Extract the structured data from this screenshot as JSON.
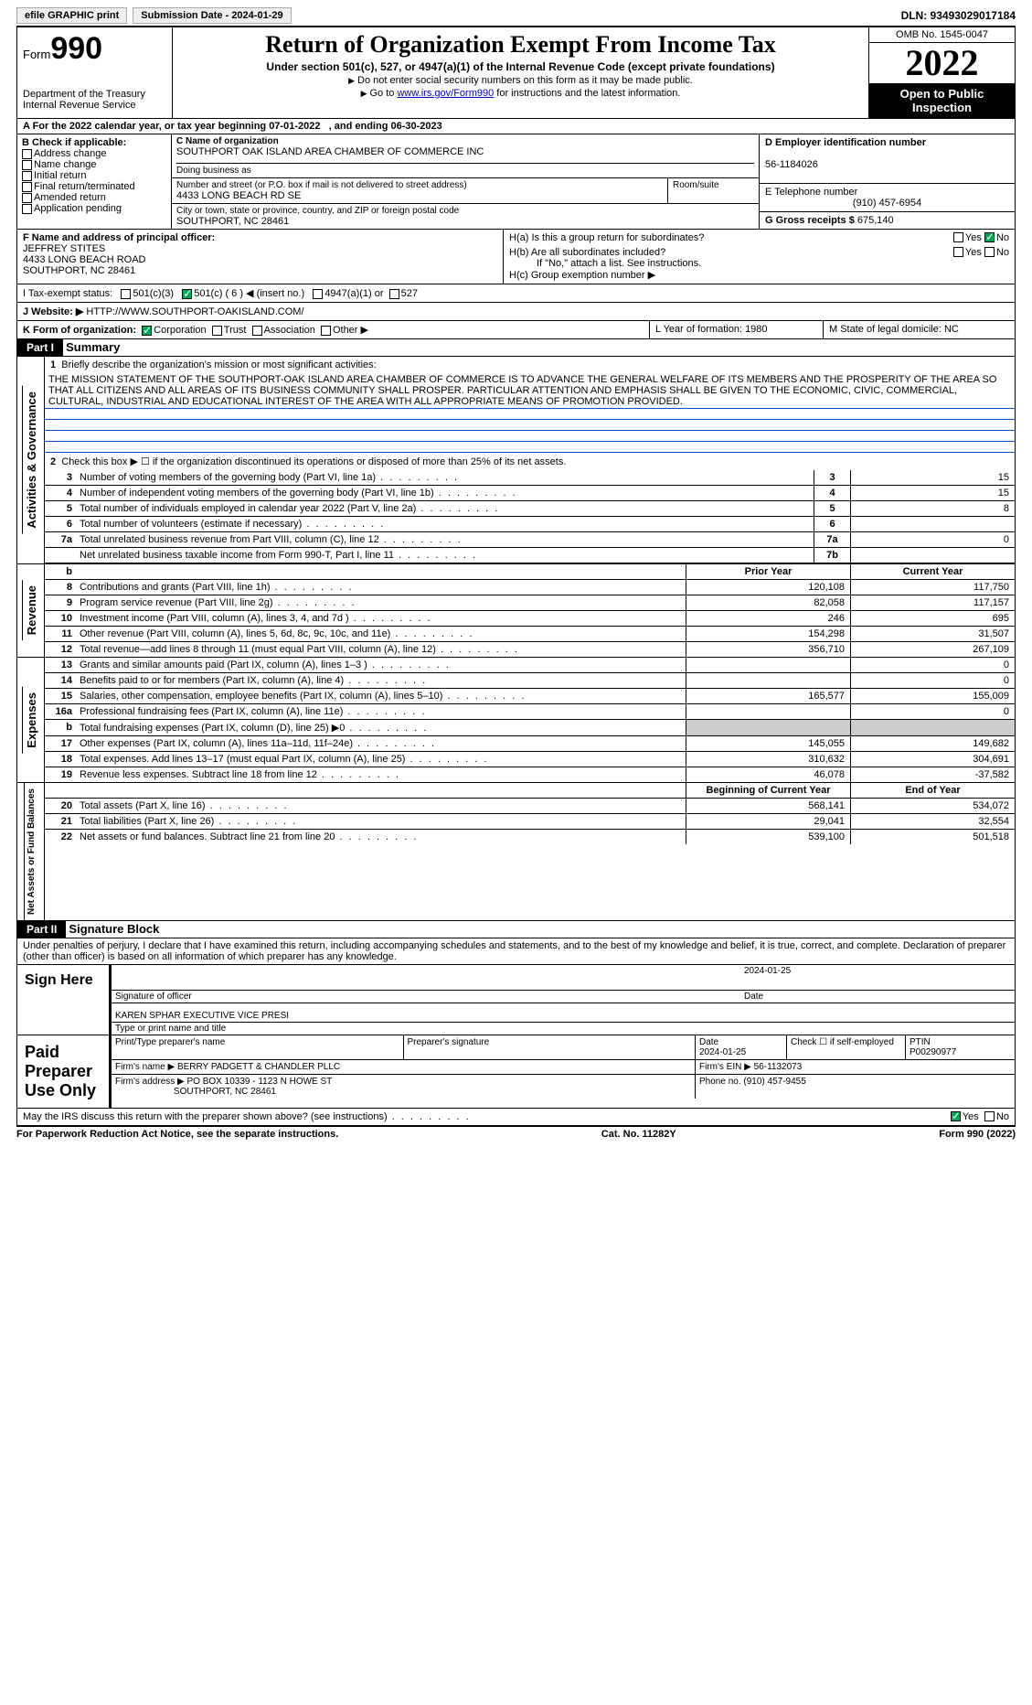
{
  "topbar": {
    "efile": "efile GRAPHIC print",
    "submission": "Submission Date - 2024-01-29",
    "dln": "DLN: 93493029017184"
  },
  "header": {
    "form_label": "Form",
    "form_num": "990",
    "dept1": "Department of the Treasury",
    "dept2": "Internal Revenue Service",
    "title": "Return of Organization Exempt From Income Tax",
    "sub": "Under section 501(c), 527, or 4947(a)(1) of the Internal Revenue Code (except private foundations)",
    "note1": "Do not enter social security numbers on this form as it may be made public.",
    "note2_a": "Go to ",
    "note2_link": "www.irs.gov/Form990",
    "note2_b": " for instructions and the latest information.",
    "omb": "OMB No. 1545-0047",
    "year": "2022",
    "opub": "Open to Public Inspection"
  },
  "period": {
    "a": "A For the 2022 calendar year, or tax year beginning 07-01-2022",
    "b": ", and ending 06-30-2023"
  },
  "boxB": {
    "label": "B Check if applicable:",
    "items": [
      "Address change",
      "Name change",
      "Initial return",
      "Final return/terminated",
      "Amended return",
      "Application pending"
    ]
  },
  "boxC": {
    "label": "C Name of organization",
    "name": "SOUTHPORT OAK ISLAND AREA CHAMBER OF COMMERCE INC",
    "dba_label": "Doing business as",
    "addr_label": "Number and street (or P.O. box if mail is not delivered to street address)",
    "room_label": "Room/suite",
    "addr": "4433 LONG BEACH RD SE",
    "city_label": "City or town, state or province, country, and ZIP or foreign postal code",
    "city": "SOUTHPORT, NC  28461"
  },
  "boxD": {
    "label": "D Employer identification number",
    "val": "56-1184026"
  },
  "boxE": {
    "label": "E Telephone number",
    "val": "(910) 457-6954"
  },
  "boxG": {
    "label": "G Gross receipts $",
    "val": "675,140"
  },
  "boxF": {
    "label": "F  Name and address of principal officer:",
    "name": "JEFFREY STITES",
    "addr1": "4433 LONG BEACH ROAD",
    "addr2": "SOUTHPORT, NC  28461"
  },
  "boxH": {
    "ha": "H(a)  Is this a group return for subordinates?",
    "hb": "H(b)  Are all subordinates included?",
    "hb_note": "If \"No,\" attach a list. See instructions.",
    "hc": "H(c)  Group exemption number ▶",
    "yes": "Yes",
    "no": "No"
  },
  "boxI": {
    "label": "I  Tax-exempt status:",
    "o1": "501(c)(3)",
    "o2": "501(c) ( 6 ) ◀ (insert no.)",
    "o3": "4947(a)(1) or",
    "o4": "527"
  },
  "boxJ": {
    "label": "J  Website: ▶",
    "val": "HTTP://WWW.SOUTHPORT-OAKISLAND.COM/"
  },
  "boxK": {
    "label": "K Form of organization:",
    "o1": "Corporation",
    "o2": "Trust",
    "o3": "Association",
    "o4": "Other ▶"
  },
  "boxL": {
    "label": "L Year of formation:",
    "val": "1980"
  },
  "boxM": {
    "label": "M State of legal domicile:",
    "val": "NC"
  },
  "part1": {
    "label": "Part I",
    "title": "Summary"
  },
  "summary": {
    "l1_label": "Briefly describe the organization's mission or most significant activities:",
    "mission": "THE MISSION STATEMENT OF THE SOUTHPORT-OAK ISLAND AREA CHAMBER OF COMMERCE IS TO ADVANCE THE GENERAL WELFARE OF ITS MEMBERS AND THE PROSPERITY OF THE AREA SO THAT ALL CITIZENS AND ALL AREAS OF ITS BUSINESS COMMUNITY SHALL PROSPER. PARTICULAR ATTENTION AND EMPHASIS SHALL BE GIVEN TO THE ECONOMIC, CIVIC, COMMERCIAL, CULTURAL, INDUSTRIAL AND EDUCATIONAL INTEREST OF THE AREA WITH ALL APPROPRIATE MEANS OF PROMOTION PROVIDED.",
    "l2": "Check this box ▶ ☐  if the organization discontinued its operations or disposed of more than 25% of its net assets.",
    "gov_label": "Activities & Governance",
    "rev_label": "Revenue",
    "exp_label": "Expenses",
    "net_label": "Net Assets or Fund Balances",
    "prior_hdr": "Prior Year",
    "curr_hdr": "Current Year",
    "boy_hdr": "Beginning of Current Year",
    "eoy_hdr": "End of Year",
    "rows_gov": [
      {
        "n": "3",
        "t": "Number of voting members of the governing body (Part VI, line 1a)",
        "b": "3",
        "v": "15"
      },
      {
        "n": "4",
        "t": "Number of independent voting members of the governing body (Part VI, line 1b)",
        "b": "4",
        "v": "15"
      },
      {
        "n": "5",
        "t": "Total number of individuals employed in calendar year 2022 (Part V, line 2a)",
        "b": "5",
        "v": "8"
      },
      {
        "n": "6",
        "t": "Total number of volunteers (estimate if necessary)",
        "b": "6",
        "v": ""
      },
      {
        "n": "7a",
        "t": "Total unrelated business revenue from Part VIII, column (C), line 12",
        "b": "7a",
        "v": "0"
      },
      {
        "n": "",
        "t": "Net unrelated business taxable income from Form 990-T, Part I, line 11",
        "b": "7b",
        "v": ""
      }
    ],
    "rows_rev": [
      {
        "n": "8",
        "t": "Contributions and grants (Part VIII, line 1h)",
        "p": "120,108",
        "c": "117,750"
      },
      {
        "n": "9",
        "t": "Program service revenue (Part VIII, line 2g)",
        "p": "82,058",
        "c": "117,157"
      },
      {
        "n": "10",
        "t": "Investment income (Part VIII, column (A), lines 3, 4, and 7d )",
        "p": "246",
        "c": "695"
      },
      {
        "n": "11",
        "t": "Other revenue (Part VIII, column (A), lines 5, 6d, 8c, 9c, 10c, and 11e)",
        "p": "154,298",
        "c": "31,507"
      },
      {
        "n": "12",
        "t": "Total revenue—add lines 8 through 11 (must equal Part VIII, column (A), line 12)",
        "p": "356,710",
        "c": "267,109"
      }
    ],
    "rows_exp": [
      {
        "n": "13",
        "t": "Grants and similar amounts paid (Part IX, column (A), lines 1–3 )",
        "p": "",
        "c": "0"
      },
      {
        "n": "14",
        "t": "Benefits paid to or for members (Part IX, column (A), line 4)",
        "p": "",
        "c": "0"
      },
      {
        "n": "15",
        "t": "Salaries, other compensation, employee benefits (Part IX, column (A), lines 5–10)",
        "p": "165,577",
        "c": "155,009"
      },
      {
        "n": "16a",
        "t": "Professional fundraising fees (Part IX, column (A), line 11e)",
        "p": "",
        "c": "0"
      },
      {
        "n": "b",
        "t": "Total fundraising expenses (Part IX, column (D), line 25) ▶0",
        "p": "GREY",
        "c": "GREY"
      },
      {
        "n": "17",
        "t": "Other expenses (Part IX, column (A), lines 11a–11d, 11f–24e)",
        "p": "145,055",
        "c": "149,682"
      },
      {
        "n": "18",
        "t": "Total expenses. Add lines 13–17 (must equal Part IX, column (A), line 25)",
        "p": "310,632",
        "c": "304,691"
      },
      {
        "n": "19",
        "t": "Revenue less expenses. Subtract line 18 from line 12",
        "p": "46,078",
        "c": "-37,582"
      }
    ],
    "rows_net": [
      {
        "n": "20",
        "t": "Total assets (Part X, line 16)",
        "p": "568,141",
        "c": "534,072"
      },
      {
        "n": "21",
        "t": "Total liabilities (Part X, line 26)",
        "p": "29,041",
        "c": "32,554"
      },
      {
        "n": "22",
        "t": "Net assets or fund balances. Subtract line 21 from line 20",
        "p": "539,100",
        "c": "501,518"
      }
    ]
  },
  "part2": {
    "label": "Part II",
    "title": "Signature Block"
  },
  "sig": {
    "decl": "Under penalties of perjury, I declare that I have examined this return, including accompanying schedules and statements, and to the best of my knowledge and belief, it is true, correct, and complete. Declaration of preparer (other than officer) is based on all information of which preparer has any knowledge.",
    "sign_here": "Sign Here",
    "sig_officer": "Signature of officer",
    "date": "Date",
    "date_val": "2024-01-25",
    "name_val": "KAREN SPHAR  EXECUTIVE VICE PRESI",
    "name_label": "Type or print name and title",
    "paid": "Paid Preparer Use Only",
    "prep_name_label": "Print/Type preparer's name",
    "prep_sig_label": "Preparer's signature",
    "prep_date": "2024-01-25",
    "check_self": "Check ☐ if self-employed",
    "ptin_label": "PTIN",
    "ptin": "P00290977",
    "firm_label": "Firm's name    ▶",
    "firm": "BERRY PADGETT & CHANDLER PLLC",
    "ein_label": "Firm's EIN ▶",
    "ein": "56-1132073",
    "addr_label": "Firm's address ▶",
    "addr1": "PO BOX 10339 - 1123 N HOWE ST",
    "addr2": "SOUTHPORT, NC  28461",
    "phone_label": "Phone no.",
    "phone": "(910) 457-9455",
    "discuss": "May the IRS discuss this return with the preparer shown above? (see instructions)",
    "yes": "Yes",
    "no": "No"
  },
  "footer": {
    "notice": "For Paperwork Reduction Act Notice, see the separate instructions.",
    "cat": "Cat. No. 11282Y",
    "form": "Form 990 (2022)"
  }
}
